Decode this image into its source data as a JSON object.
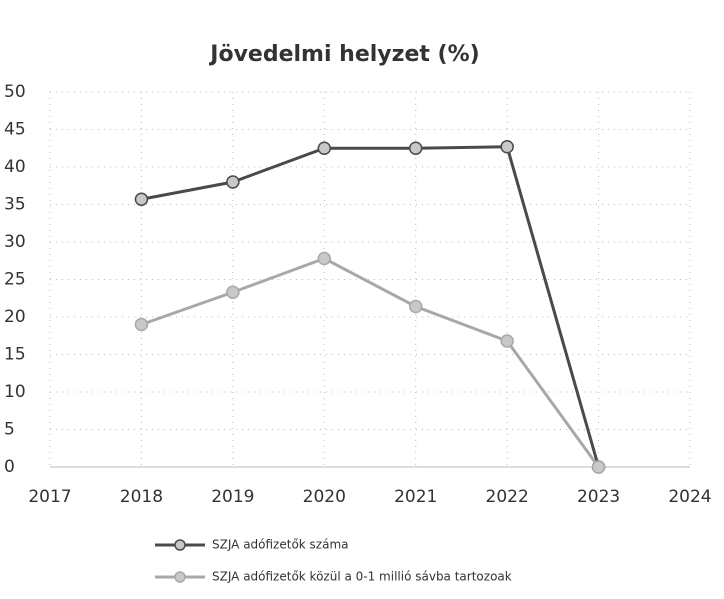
{
  "chart_data": {
    "type": "line",
    "title": "Jövedelmi helyzet (%)",
    "x": [
      2018,
      2019,
      2020,
      2021,
      2022,
      2023
    ],
    "series": [
      {
        "name": "SZJA adófizetők száma",
        "color": "#4a4a4a",
        "values": [
          35.7,
          38,
          42.5,
          42.5,
          42.7,
          0
        ]
      },
      {
        "name": "SZJA adófizetők közül a 0-1 millió sávba tartozoak",
        "color": "#a8a8a8",
        "values": [
          19,
          23.3,
          27.8,
          21.4,
          16.8,
          0
        ]
      }
    ],
    "xlim": [
      2017,
      2024
    ],
    "xticks": [
      2017,
      2018,
      2019,
      2020,
      2021,
      2022,
      2023,
      2024
    ],
    "ylim": [
      0,
      50
    ],
    "yticks": [
      0,
      5,
      10,
      15,
      20,
      25,
      30,
      35,
      40,
      45,
      50
    ],
    "grid": true,
    "legend": "bottom"
  }
}
